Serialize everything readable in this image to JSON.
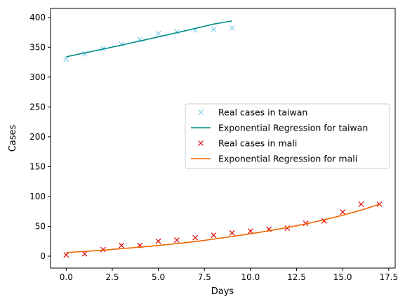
{
  "chart_data": {
    "type": "line",
    "xlabel": "Days",
    "ylabel": "Cases",
    "xlim": [
      -0.85,
      17.85
    ],
    "ylim": [
      -20,
      415
    ],
    "xticks": [
      0,
      2.5,
      5,
      7.5,
      10,
      12.5,
      15,
      17.5
    ],
    "xtick_labels": [
      "0.0",
      "2.5",
      "5.0",
      "7.5",
      "10.0",
      "12.5",
      "15.0",
      "17.5"
    ],
    "yticks": [
      0,
      50,
      100,
      150,
      200,
      250,
      300,
      350,
      400
    ],
    "ytick_labels": [
      "0",
      "50",
      "100",
      "150",
      "200",
      "250",
      "300",
      "350",
      "400"
    ],
    "grid": false,
    "legend_position": "center-right",
    "series": [
      {
        "name": "Real cases in taiwan",
        "kind": "markers",
        "marker": "x",
        "color": "#87ceeb",
        "x": [
          0,
          1,
          2,
          3,
          4,
          5,
          6,
          7,
          8,
          9
        ],
        "y": [
          330,
          339,
          348,
          355,
          363,
          373,
          376,
          379,
          380,
          382
        ]
      },
      {
        "name": "Exponential Regression for taiwan",
        "kind": "line",
        "color": "#008b8b",
        "x": [
          0,
          1,
          2,
          3,
          4,
          5,
          6,
          7,
          8,
          9
        ],
        "y": [
          334,
          340.4,
          346.9,
          353.6,
          360.4,
          367.3,
          374.3,
          381.5,
          388.8,
          394
        ]
      },
      {
        "name": "Real cases in mali",
        "kind": "markers",
        "marker": "x",
        "color": "#dd0000",
        "x": [
          0,
          1,
          2,
          3,
          4,
          5,
          6,
          7,
          8,
          9,
          10,
          11,
          12,
          13,
          14,
          15,
          16,
          17
        ],
        "y": [
          2,
          4,
          11,
          18,
          18,
          25,
          27,
          31,
          35,
          39,
          42,
          45,
          47,
          55,
          59,
          74,
          87,
          87
        ]
      },
      {
        "name": "Exponential Regression for mali",
        "kind": "line",
        "color": "#ee6600",
        "x": [
          0,
          1,
          2,
          3,
          4,
          5,
          6,
          7,
          8,
          9,
          10,
          11,
          12,
          13,
          14,
          15,
          16,
          17
        ],
        "y": [
          6,
          8,
          10,
          12.5,
          15,
          18,
          21,
          24.5,
          28.5,
          33,
          37.5,
          42.5,
          48,
          54,
          61,
          68.5,
          77,
          87
        ]
      }
    ]
  }
}
